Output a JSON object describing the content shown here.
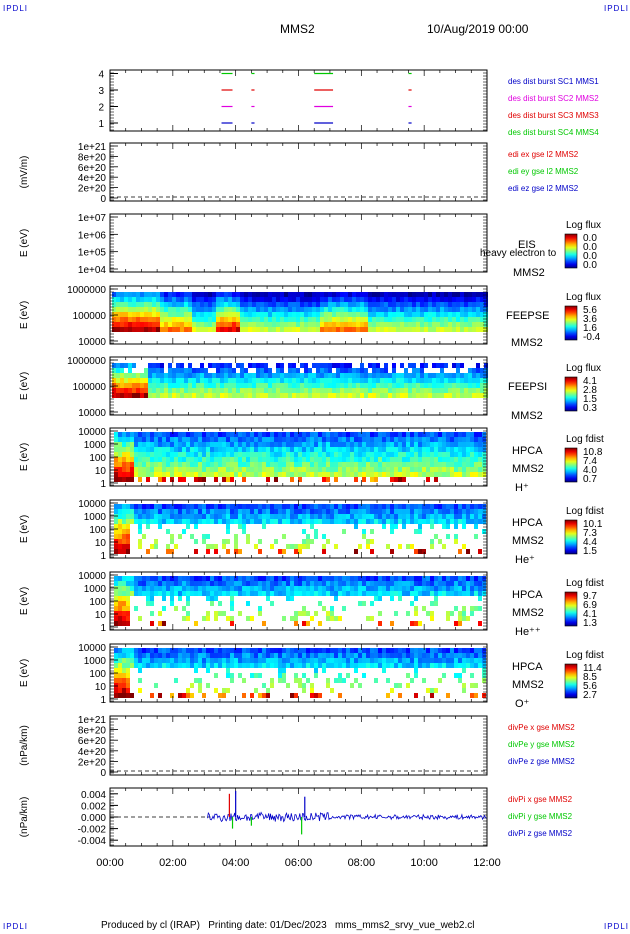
{
  "corners": {
    "tl": "IPDLI",
    "tr": "IPDLI",
    "bl": "IPDLI",
    "br": "IPDLI"
  },
  "header": {
    "spacecraft": "MMS2",
    "datetime": "10/Aug/2019 00:00"
  },
  "footer": {
    "text": "Produced by cl (IRAP)   Printing date: 01/Dec/2023   mms_mms2_srvy_vue_web2.cl"
  },
  "colors": {
    "red": "#e00000",
    "green": "#00c800",
    "blue": "#0000c8",
    "magenta": "#e000e0",
    "darkgreen": "#00a000"
  },
  "chart_data": [
    {
      "id": "burst",
      "type": "scatter",
      "yticks": [
        "1",
        "2",
        "3",
        "4"
      ],
      "legend": [
        {
          "text": "des dist burst SC1 MMS1",
          "color": "#0000c8"
        },
        {
          "text": "des dist burst SC2 MMS2",
          "color": "#e000e0"
        },
        {
          "text": "des dist burst SC3 MMS3",
          "color": "#e00000"
        },
        {
          "text": "des dist burst SC4 MMS4",
          "color": "#00c800"
        }
      ],
      "intervals": [
        [
          3.55,
          3.9
        ],
        [
          4.5,
          4.6
        ],
        [
          6.5,
          7.1
        ],
        [
          9.5,
          9.6
        ]
      ],
      "levels": [
        {
          "y": 1,
          "color": "#0000c8"
        },
        {
          "y": 2,
          "color": "#e000e0"
        },
        {
          "y": 3,
          "color": "#e00000"
        },
        {
          "y": 4,
          "color": "#00c800"
        }
      ]
    },
    {
      "id": "efield",
      "type": "line",
      "ylabel": "(mV/m)",
      "yticks": [
        "1e+21",
        "8e+20",
        "6e+20",
        "4e+20",
        "2e+20",
        "0"
      ],
      "legend": [
        {
          "text": "edi ex gse l2 MMS2",
          "color": "#e00000"
        },
        {
          "text": "edi ey gse l2 MMS2",
          "color": "#00c800"
        },
        {
          "text": "edi ez gse l2 MMS2",
          "color": "#0000c8"
        }
      ]
    },
    {
      "id": "eis",
      "type": "heatmap",
      "ylabel": "E (eV)",
      "yticks": [
        "1e+07",
        "1e+06",
        "1e+05",
        "1e+04"
      ],
      "labels": [
        "EIS",
        "heavy electron to",
        "MMS2"
      ],
      "colorbar": {
        "title": "Log flux",
        "ticks": [
          "0.0",
          "0.0",
          "0.0",
          "0.0"
        ]
      }
    },
    {
      "id": "feepse",
      "type": "heatmap",
      "ylabel": "E (eV)",
      "yticks": [
        "1000000",
        "100000",
        "10000"
      ],
      "labels": [
        "FEEPSE",
        "MMS2"
      ],
      "colorbar": {
        "title": "Log flux",
        "ticks": [
          "5.6",
          "3.6",
          "1.6",
          "-0.4"
        ]
      }
    },
    {
      "id": "feepsi",
      "type": "heatmap",
      "ylabel": "E (eV)",
      "yticks": [
        "1000000",
        "100000",
        "10000"
      ],
      "labels": [
        "FEEPSI",
        "MMS2"
      ],
      "colorbar": {
        "title": "Log flux",
        "ticks": [
          "4.1",
          "2.8",
          "1.5",
          "0.3"
        ]
      }
    },
    {
      "id": "hpca_h",
      "type": "heatmap",
      "ylabel": "E (eV)",
      "yticks": [
        "10000",
        "1000",
        "100",
        "10",
        "1"
      ],
      "labels": [
        "HPCA",
        "MMS2",
        "H⁺"
      ],
      "colorbar": {
        "title": "Log fdist",
        "ticks": [
          "10.8",
          "7.4",
          "4.0",
          "0.7"
        ]
      }
    },
    {
      "id": "hpca_he",
      "type": "heatmap",
      "ylabel": "E (eV)",
      "yticks": [
        "10000",
        "1000",
        "100",
        "10",
        "1"
      ],
      "labels": [
        "HPCA",
        "MMS2",
        "He⁺"
      ],
      "colorbar": {
        "title": "Log fdist",
        "ticks": [
          "10.1",
          "7.3",
          "4.4",
          "1.5"
        ]
      }
    },
    {
      "id": "hpca_hepp",
      "type": "heatmap",
      "ylabel": "E (eV)",
      "yticks": [
        "10000",
        "1000",
        "100",
        "10",
        "1"
      ],
      "labels": [
        "HPCA",
        "MMS2",
        "He⁺⁺"
      ],
      "colorbar": {
        "title": "Log fdist",
        "ticks": [
          "9.7",
          "6.9",
          "4.1",
          "1.3"
        ]
      }
    },
    {
      "id": "hpca_o",
      "type": "heatmap",
      "ylabel": "E (eV)",
      "yticks": [
        "10000",
        "1000",
        "100",
        "10",
        "1"
      ],
      "labels": [
        "HPCA",
        "MMS2",
        "O⁺"
      ],
      "colorbar": {
        "title": "Log fdist",
        "ticks": [
          "11.4",
          "8.5",
          "5.6",
          "2.7"
        ]
      }
    },
    {
      "id": "divpe",
      "type": "line",
      "ylabel": "(nPa/km)",
      "yticks": [
        "1e+21",
        "8e+20",
        "6e+20",
        "4e+20",
        "2e+20",
        "0"
      ],
      "legend": [
        {
          "text": "divPe x gse MMS2",
          "color": "#e00000"
        },
        {
          "text": "divPe y gse MMS2",
          "color": "#00c800"
        },
        {
          "text": "divPe z gse MMS2",
          "color": "#0000c8"
        }
      ]
    },
    {
      "id": "divpi",
      "type": "line",
      "ylabel": "(nPa/km)",
      "yticks": [
        "0.004",
        "0.002",
        "0.000",
        "-0.002",
        "-0.004"
      ],
      "ylim": [
        -0.005,
        0.005
      ],
      "legend": [
        {
          "text": "divPi x gse MMS2",
          "color": "#e00000"
        },
        {
          "text": "divPi y gse MMS2",
          "color": "#00c800"
        },
        {
          "text": "divPi z gse MMS2",
          "color": "#0000c8"
        }
      ],
      "spikes": [
        {
          "t": 3.8,
          "v": 0.004,
          "color": "#e00000"
        },
        {
          "t": 4.0,
          "v": 0.0045,
          "color": "#0000c8"
        },
        {
          "t": 3.9,
          "v": -0.002,
          "color": "#00c800"
        },
        {
          "t": 6.2,
          "v": 0.0035,
          "color": "#0000c8"
        },
        {
          "t": 6.1,
          "v": -0.003,
          "color": "#00c800"
        },
        {
          "t": 4.5,
          "v": -0.0015,
          "color": "#00c800"
        }
      ]
    }
  ],
  "xaxis": {
    "ticks": [
      "00:00",
      "02:00",
      "04:00",
      "06:00",
      "08:00",
      "10:00",
      "12:00"
    ],
    "range": [
      0,
      12
    ]
  }
}
